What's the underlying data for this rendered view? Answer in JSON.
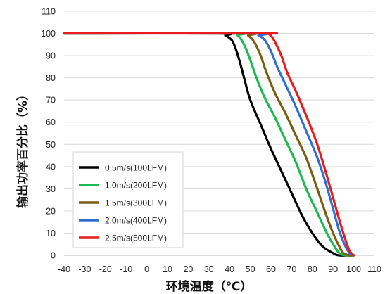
{
  "chart_data": {
    "type": "line",
    "xlabel": "环境温度（℃）",
    "ylabel": "输出功率百分比（%）",
    "xlim": [
      -40,
      110
    ],
    "ylim": [
      0,
      110
    ],
    "xticks": [
      -40,
      -30,
      -20,
      -10,
      0,
      10,
      20,
      30,
      40,
      50,
      60,
      70,
      80,
      90,
      100,
      110
    ],
    "yticks": [
      0,
      10,
      20,
      30,
      40,
      50,
      60,
      70,
      80,
      90,
      100,
      110
    ],
    "grid": "horizontal",
    "legend_position": "bottom-left",
    "series": [
      {
        "name": "0.5m/s(100LFM)",
        "color": "#000000",
        "points": [
          [
            -40,
            100
          ],
          [
            34,
            100
          ],
          [
            38,
            99
          ],
          [
            41,
            97
          ],
          [
            43,
            93
          ],
          [
            45,
            87
          ],
          [
            47,
            80
          ],
          [
            50,
            70
          ],
          [
            55,
            59
          ],
          [
            60,
            48
          ],
          [
            65,
            38
          ],
          [
            70,
            28
          ],
          [
            75,
            18
          ],
          [
            80,
            10
          ],
          [
            85,
            4
          ],
          [
            90,
            1
          ],
          [
            93,
            0
          ],
          [
            100,
            0
          ]
        ]
      },
      {
        "name": "1.0m/s(200LFM)",
        "color": "#1db954",
        "points": [
          [
            -40,
            100
          ],
          [
            40,
            100
          ],
          [
            44,
            99
          ],
          [
            47,
            95
          ],
          [
            50,
            88
          ],
          [
            53,
            80
          ],
          [
            57,
            71
          ],
          [
            62,
            62
          ],
          [
            67,
            52
          ],
          [
            72,
            42
          ],
          [
            77,
            30
          ],
          [
            82,
            20
          ],
          [
            87,
            10
          ],
          [
            90,
            5
          ],
          [
            93,
            1
          ],
          [
            96,
            0
          ],
          [
            100,
            0
          ]
        ]
      },
      {
        "name": "1.5m/s(300LFM)",
        "color": "#7a5d10",
        "points": [
          [
            -40,
            100
          ],
          [
            45,
            100
          ],
          [
            49,
            99
          ],
          [
            52,
            96
          ],
          [
            55,
            90
          ],
          [
            58,
            82
          ],
          [
            62,
            73
          ],
          [
            67,
            64
          ],
          [
            72,
            54
          ],
          [
            77,
            44
          ],
          [
            82,
            31
          ],
          [
            86,
            20
          ],
          [
            90,
            10
          ],
          [
            93,
            4
          ],
          [
            95,
            1
          ],
          [
            98,
            0
          ],
          [
            100,
            0
          ]
        ]
      },
      {
        "name": "2.0m/s(400LFM)",
        "color": "#2f6fd0",
        "points": [
          [
            -40,
            100
          ],
          [
            50,
            100
          ],
          [
            54,
            99
          ],
          [
            57,
            97
          ],
          [
            60,
            92
          ],
          [
            63,
            85
          ],
          [
            67,
            77
          ],
          [
            72,
            67
          ],
          [
            77,
            56
          ],
          [
            82,
            45
          ],
          [
            86,
            34
          ],
          [
            90,
            21
          ],
          [
            93,
            11
          ],
          [
            96,
            4
          ],
          [
            98,
            1
          ],
          [
            100,
            0
          ]
        ]
      },
      {
        "name": "2.5m/s(500LFM)",
        "color": "#e81c1c",
        "points": [
          [
            -40,
            100
          ],
          [
            55,
            100
          ],
          [
            58,
            100
          ],
          [
            60,
            99
          ],
          [
            62,
            96
          ],
          [
            65,
            90
          ],
          [
            68,
            82
          ],
          [
            72,
            74
          ],
          [
            77,
            63
          ],
          [
            82,
            51
          ],
          [
            86,
            39
          ],
          [
            90,
            26
          ],
          [
            93,
            16
          ],
          [
            96,
            7
          ],
          [
            98,
            2
          ],
          [
            100,
            0
          ]
        ]
      }
    ]
  }
}
